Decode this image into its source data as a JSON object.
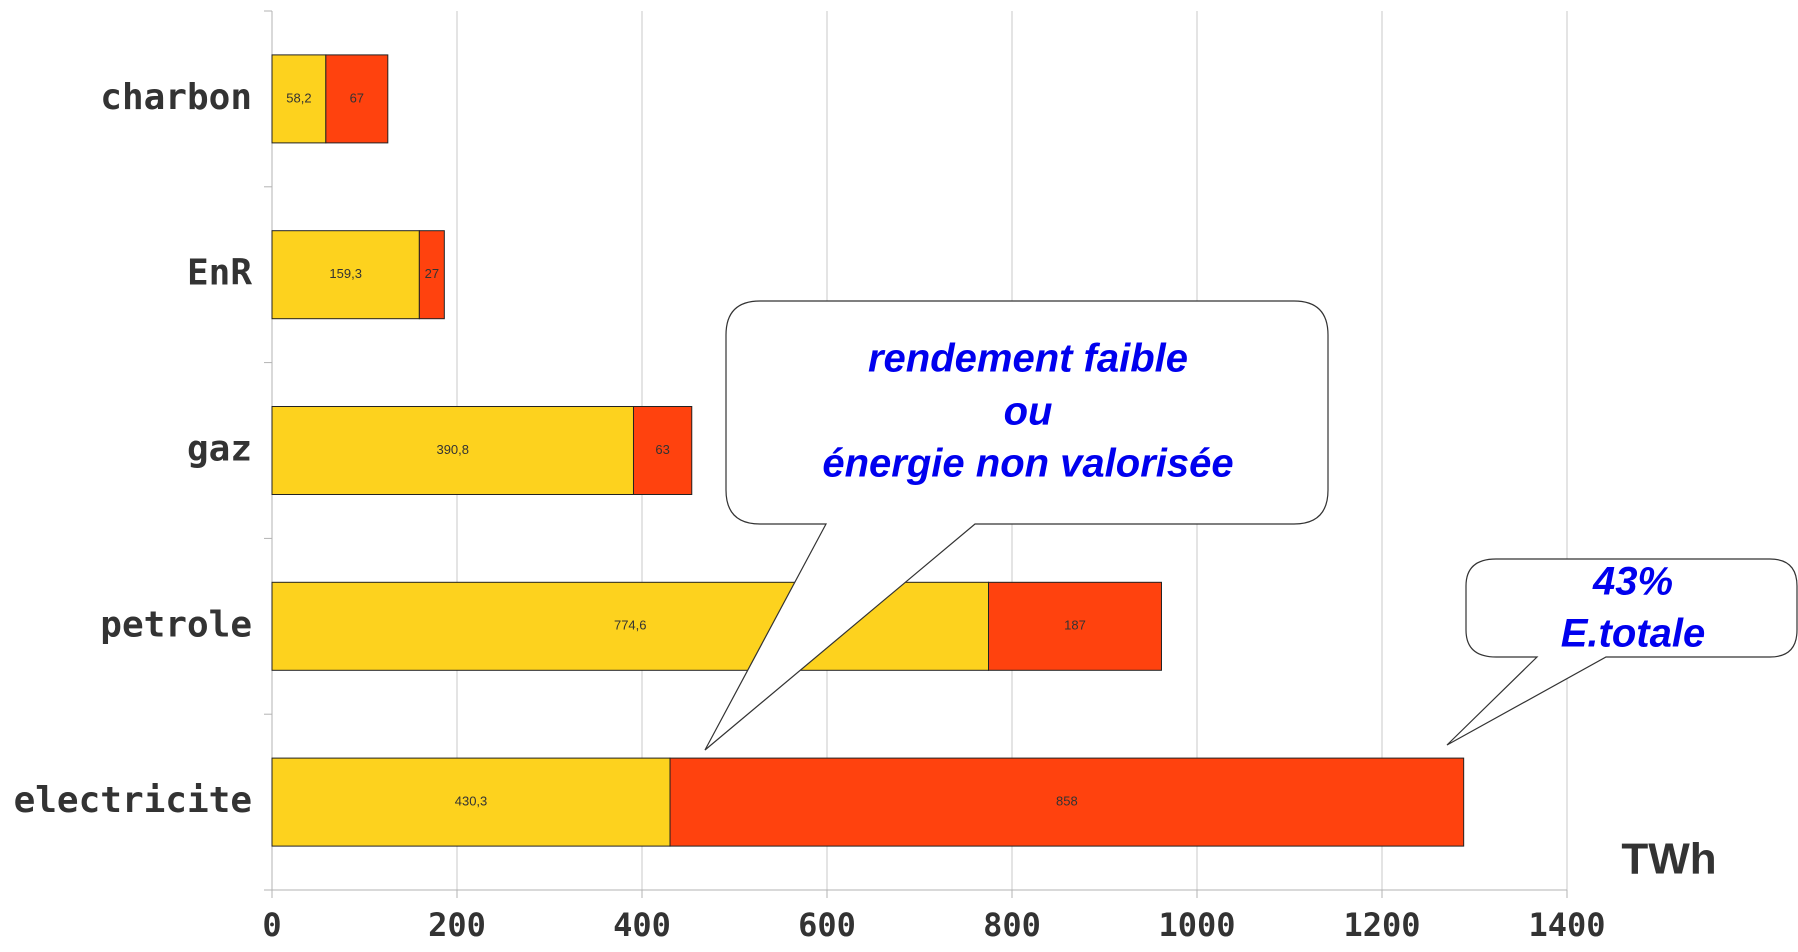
{
  "chart_data": {
    "type": "stacked_hbar",
    "categories": [
      "charbon",
      "EnR",
      "gaz",
      "petrole",
      "electricite"
    ],
    "series": [
      {
        "color": "#fdd21e",
        "values": [
          58.2,
          159.3,
          390.8,
          774.6,
          430.3
        ],
        "value_labels": [
          "58,2",
          "159,3",
          "390,8",
          "774,6",
          "430,3"
        ]
      },
      {
        "color": "#ff420e",
        "values": [
          67,
          27,
          63,
          187,
          858
        ]
      }
    ],
    "xlim": [
      0,
      1400
    ],
    "xticks": [
      0,
      200,
      400,
      600,
      800,
      1000,
      1200,
      1400
    ],
    "grid": true,
    "x_label": "TWh",
    "annotations": [
      {
        "lines": [
          "rendement faible",
          "ou",
          "énergie non valorisée"
        ]
      },
      {
        "lines": [
          "43%",
          "E.totale"
        ]
      }
    ]
  }
}
